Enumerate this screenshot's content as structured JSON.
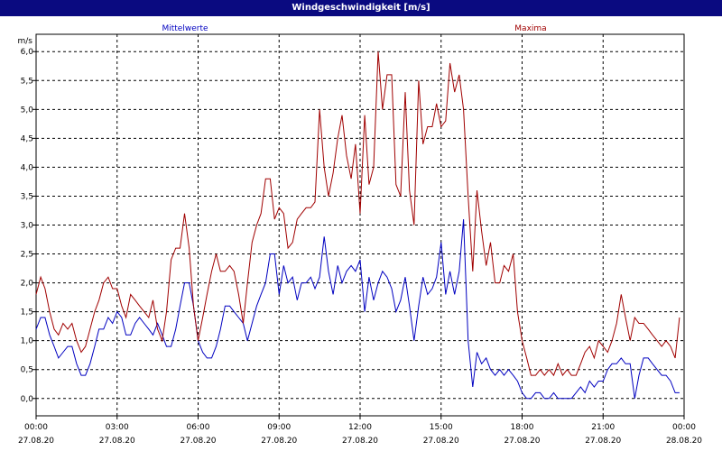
{
  "window": {
    "title": "Windgeschwindigkeit [m/s]"
  },
  "chart_data": {
    "type": "line",
    "title": "Windgeschwindigkeit [m/s]",
    "ylabel": "m/s",
    "ylim": [
      -0.3,
      6.3
    ],
    "yticks": [
      0.0,
      0.5,
      1.0,
      1.5,
      2.0,
      2.5,
      3.0,
      3.5,
      4.0,
      4.5,
      5.0,
      5.5,
      6.0
    ],
    "ytick_labels": [
      "0,0",
      "0,5",
      "1,0",
      "1,5",
      "2,0",
      "2,5",
      "3,0",
      "3,5",
      "4,0",
      "4,5",
      "5,0",
      "5,5",
      "6,0"
    ],
    "x_range_hours": [
      0,
      24
    ],
    "xticks": [
      {
        "h": 0,
        "time": "00:00",
        "date": "27.08.20"
      },
      {
        "h": 3,
        "time": "03:00",
        "date": "27.08.20"
      },
      {
        "h": 6,
        "time": "06:00",
        "date": "27.08.20"
      },
      {
        "h": 9,
        "time": "09:00",
        "date": "27.08.20"
      },
      {
        "h": 12,
        "time": "12:00",
        "date": "27.08.20"
      },
      {
        "h": 15,
        "time": "15:00",
        "date": "27.08.20"
      },
      {
        "h": 18,
        "time": "18:00",
        "date": "27.08.20"
      },
      {
        "h": 21,
        "time": "21:00",
        "date": "27.08.20"
      },
      {
        "h": 24,
        "time": "00:00",
        "date": "28.08.20"
      }
    ],
    "grid": true,
    "series": [
      {
        "name": "Mittelwerte",
        "color": "#0000c0",
        "legend_position": "top-left",
        "points": [
          [
            0.0,
            1.2
          ],
          [
            0.17,
            1.4
          ],
          [
            0.33,
            1.4
          ],
          [
            0.5,
            1.1
          ],
          [
            0.67,
            0.9
          ],
          [
            0.83,
            0.7
          ],
          [
            1.0,
            0.8
          ],
          [
            1.17,
            0.9
          ],
          [
            1.33,
            0.9
          ],
          [
            1.5,
            0.6
          ],
          [
            1.67,
            0.4
          ],
          [
            1.83,
            0.4
          ],
          [
            2.0,
            0.6
          ],
          [
            2.17,
            0.9
          ],
          [
            2.33,
            1.2
          ],
          [
            2.5,
            1.2
          ],
          [
            2.67,
            1.4
          ],
          [
            2.83,
            1.3
          ],
          [
            3.0,
            1.5
          ],
          [
            3.17,
            1.4
          ],
          [
            3.33,
            1.1
          ],
          [
            3.5,
            1.1
          ],
          [
            3.67,
            1.3
          ],
          [
            3.83,
            1.4
          ],
          [
            4.0,
            1.3
          ],
          [
            4.17,
            1.2
          ],
          [
            4.33,
            1.1
          ],
          [
            4.5,
            1.3
          ],
          [
            4.67,
            1.1
          ],
          [
            4.83,
            0.9
          ],
          [
            5.0,
            0.9
          ],
          [
            5.17,
            1.2
          ],
          [
            5.33,
            1.6
          ],
          [
            5.5,
            2.0
          ],
          [
            5.67,
            2.0
          ],
          [
            5.83,
            1.6
          ],
          [
            6.0,
            1.0
          ],
          [
            6.17,
            0.8
          ],
          [
            6.33,
            0.7
          ],
          [
            6.5,
            0.7
          ],
          [
            6.67,
            0.9
          ],
          [
            6.83,
            1.2
          ],
          [
            7.0,
            1.6
          ],
          [
            7.17,
            1.6
          ],
          [
            7.33,
            1.5
          ],
          [
            7.5,
            1.4
          ],
          [
            7.67,
            1.3
          ],
          [
            7.83,
            1.0
          ],
          [
            8.0,
            1.3
          ],
          [
            8.17,
            1.6
          ],
          [
            8.33,
            1.8
          ],
          [
            8.5,
            2.0
          ],
          [
            8.67,
            2.5
          ],
          [
            8.83,
            2.5
          ],
          [
            9.0,
            1.8
          ],
          [
            9.17,
            2.3
          ],
          [
            9.33,
            2.0
          ],
          [
            9.5,
            2.1
          ],
          [
            9.67,
            1.7
          ],
          [
            9.83,
            2.0
          ],
          [
            10.0,
            2.0
          ],
          [
            10.17,
            2.1
          ],
          [
            10.33,
            1.9
          ],
          [
            10.5,
            2.1
          ],
          [
            10.67,
            2.8
          ],
          [
            10.83,
            2.2
          ],
          [
            11.0,
            1.8
          ],
          [
            11.17,
            2.3
          ],
          [
            11.33,
            2.0
          ],
          [
            11.5,
            2.2
          ],
          [
            11.67,
            2.3
          ],
          [
            11.83,
            2.2
          ],
          [
            12.0,
            2.4
          ],
          [
            12.17,
            1.5
          ],
          [
            12.33,
            2.1
          ],
          [
            12.5,
            1.7
          ],
          [
            12.67,
            2.0
          ],
          [
            12.83,
            2.2
          ],
          [
            13.0,
            2.1
          ],
          [
            13.17,
            1.9
          ],
          [
            13.33,
            1.5
          ],
          [
            13.5,
            1.7
          ],
          [
            13.67,
            2.1
          ],
          [
            13.83,
            1.6
          ],
          [
            14.0,
            1.0
          ],
          [
            14.17,
            1.6
          ],
          [
            14.33,
            2.1
          ],
          [
            14.5,
            1.8
          ],
          [
            14.67,
            1.9
          ],
          [
            14.83,
            2.1
          ],
          [
            15.0,
            2.7
          ],
          [
            15.17,
            1.8
          ],
          [
            15.33,
            2.2
          ],
          [
            15.5,
            1.8
          ],
          [
            15.67,
            2.2
          ],
          [
            15.83,
            3.1
          ],
          [
            16.0,
            1.0
          ],
          [
            16.17,
            0.2
          ],
          [
            16.33,
            0.8
          ],
          [
            16.5,
            0.6
          ],
          [
            16.67,
            0.7
          ],
          [
            16.83,
            0.5
          ],
          [
            17.0,
            0.4
          ],
          [
            17.17,
            0.5
          ],
          [
            17.33,
            0.4
          ],
          [
            17.5,
            0.5
          ],
          [
            17.67,
            0.4
          ],
          [
            17.83,
            0.3
          ],
          [
            18.0,
            0.1
          ],
          [
            18.17,
            0.0
          ],
          [
            18.33,
            0.0
          ],
          [
            18.5,
            0.1
          ],
          [
            18.67,
            0.1
          ],
          [
            18.83,
            0.0
          ],
          [
            19.0,
            0.0
          ],
          [
            19.17,
            0.1
          ],
          [
            19.33,
            0.0
          ],
          [
            19.5,
            0.0
          ],
          [
            19.67,
            0.0
          ],
          [
            19.83,
            0.0
          ],
          [
            20.0,
            0.1
          ],
          [
            20.17,
            0.2
          ],
          [
            20.33,
            0.1
          ],
          [
            20.5,
            0.3
          ],
          [
            20.67,
            0.2
          ],
          [
            20.83,
            0.3
          ],
          [
            21.0,
            0.3
          ],
          [
            21.17,
            0.5
          ],
          [
            21.33,
            0.6
          ],
          [
            21.5,
            0.6
          ],
          [
            21.67,
            0.7
          ],
          [
            21.83,
            0.6
          ],
          [
            22.0,
            0.6
          ],
          [
            22.17,
            0.0
          ],
          [
            22.33,
            0.4
          ],
          [
            22.5,
            0.7
          ],
          [
            22.67,
            0.7
          ],
          [
            22.83,
            0.6
          ],
          [
            23.0,
            0.5
          ],
          [
            23.17,
            0.4
          ],
          [
            23.33,
            0.4
          ],
          [
            23.5,
            0.3
          ],
          [
            23.67,
            0.1
          ],
          [
            23.83,
            0.1
          ]
        ]
      },
      {
        "name": "Maxima",
        "color": "#a00000",
        "legend_position": "top-right",
        "points": [
          [
            0.0,
            1.8
          ],
          [
            0.17,
            2.1
          ],
          [
            0.33,
            1.9
          ],
          [
            0.5,
            1.5
          ],
          [
            0.67,
            1.2
          ],
          [
            0.83,
            1.1
          ],
          [
            1.0,
            1.3
          ],
          [
            1.17,
            1.2
          ],
          [
            1.33,
            1.3
          ],
          [
            1.5,
            1.0
          ],
          [
            1.67,
            0.8
          ],
          [
            1.83,
            0.9
          ],
          [
            2.0,
            1.2
          ],
          [
            2.17,
            1.5
          ],
          [
            2.33,
            1.7
          ],
          [
            2.5,
            2.0
          ],
          [
            2.67,
            2.1
          ],
          [
            2.83,
            1.9
          ],
          [
            3.0,
            1.9
          ],
          [
            3.17,
            1.6
          ],
          [
            3.33,
            1.4
          ],
          [
            3.5,
            1.8
          ],
          [
            3.67,
            1.7
          ],
          [
            3.83,
            1.6
          ],
          [
            4.0,
            1.5
          ],
          [
            4.17,
            1.4
          ],
          [
            4.33,
            1.7
          ],
          [
            4.5,
            1.2
          ],
          [
            4.67,
            1.0
          ],
          [
            4.83,
            1.5
          ],
          [
            5.0,
            2.4
          ],
          [
            5.17,
            2.6
          ],
          [
            5.33,
            2.6
          ],
          [
            5.5,
            3.2
          ],
          [
            5.67,
            2.6
          ],
          [
            5.83,
            1.6
          ],
          [
            6.0,
            1.0
          ],
          [
            6.17,
            1.4
          ],
          [
            6.33,
            1.8
          ],
          [
            6.5,
            2.2
          ],
          [
            6.67,
            2.5
          ],
          [
            6.83,
            2.2
          ],
          [
            7.0,
            2.2
          ],
          [
            7.17,
            2.3
          ],
          [
            7.33,
            2.2
          ],
          [
            7.5,
            1.8
          ],
          [
            7.67,
            1.3
          ],
          [
            7.83,
            2.0
          ],
          [
            8.0,
            2.7
          ],
          [
            8.17,
            3.0
          ],
          [
            8.33,
            3.2
          ],
          [
            8.5,
            3.8
          ],
          [
            8.67,
            3.8
          ],
          [
            8.83,
            3.1
          ],
          [
            9.0,
            3.3
          ],
          [
            9.17,
            3.2
          ],
          [
            9.33,
            2.6
          ],
          [
            9.5,
            2.7
          ],
          [
            9.67,
            3.1
          ],
          [
            9.83,
            3.2
          ],
          [
            10.0,
            3.3
          ],
          [
            10.17,
            3.3
          ],
          [
            10.33,
            3.4
          ],
          [
            10.5,
            5.0
          ],
          [
            10.67,
            4.0
          ],
          [
            10.83,
            3.5
          ],
          [
            11.0,
            3.9
          ],
          [
            11.17,
            4.5
          ],
          [
            11.33,
            4.9
          ],
          [
            11.5,
            4.2
          ],
          [
            11.67,
            3.8
          ],
          [
            11.83,
            4.4
          ],
          [
            12.0,
            3.2
          ],
          [
            12.17,
            4.9
          ],
          [
            12.33,
            3.7
          ],
          [
            12.5,
            4.0
          ],
          [
            12.67,
            6.0
          ],
          [
            12.83,
            5.0
          ],
          [
            13.0,
            5.6
          ],
          [
            13.17,
            5.6
          ],
          [
            13.33,
            3.7
          ],
          [
            13.5,
            3.5
          ],
          [
            13.67,
            5.3
          ],
          [
            13.83,
            3.6
          ],
          [
            14.0,
            3.0
          ],
          [
            14.17,
            5.5
          ],
          [
            14.33,
            4.4
          ],
          [
            14.5,
            4.7
          ],
          [
            14.67,
            4.7
          ],
          [
            14.83,
            5.1
          ],
          [
            15.0,
            4.7
          ],
          [
            15.17,
            4.8
          ],
          [
            15.33,
            5.8
          ],
          [
            15.5,
            5.3
          ],
          [
            15.67,
            5.6
          ],
          [
            15.83,
            5.0
          ],
          [
            16.0,
            3.5
          ],
          [
            16.17,
            2.2
          ],
          [
            16.33,
            3.6
          ],
          [
            16.5,
            2.9
          ],
          [
            16.67,
            2.3
          ],
          [
            16.83,
            2.7
          ],
          [
            17.0,
            2.0
          ],
          [
            17.17,
            2.0
          ],
          [
            17.33,
            2.3
          ],
          [
            17.5,
            2.2
          ],
          [
            17.67,
            2.5
          ],
          [
            17.83,
            1.5
          ],
          [
            18.0,
            1.0
          ],
          [
            18.17,
            0.7
          ],
          [
            18.33,
            0.4
          ],
          [
            18.5,
            0.4
          ],
          [
            18.67,
            0.5
          ],
          [
            18.83,
            0.4
          ],
          [
            19.0,
            0.5
          ],
          [
            19.17,
            0.4
          ],
          [
            19.33,
            0.6
          ],
          [
            19.5,
            0.4
          ],
          [
            19.67,
            0.5
          ],
          [
            19.83,
            0.4
          ],
          [
            20.0,
            0.4
          ],
          [
            20.17,
            0.6
          ],
          [
            20.33,
            0.8
          ],
          [
            20.5,
            0.9
          ],
          [
            20.67,
            0.7
          ],
          [
            20.83,
            1.0
          ],
          [
            21.0,
            0.9
          ],
          [
            21.17,
            0.8
          ],
          [
            21.33,
            1.0
          ],
          [
            21.5,
            1.3
          ],
          [
            21.67,
            1.8
          ],
          [
            21.83,
            1.4
          ],
          [
            22.0,
            1.0
          ],
          [
            22.17,
            1.4
          ],
          [
            22.33,
            1.3
          ],
          [
            22.5,
            1.3
          ],
          [
            22.67,
            1.2
          ],
          [
            22.83,
            1.1
          ],
          [
            23.0,
            1.0
          ],
          [
            23.17,
            0.9
          ],
          [
            23.33,
            1.0
          ],
          [
            23.5,
            0.9
          ],
          [
            23.67,
            0.7
          ],
          [
            23.83,
            1.4
          ]
        ]
      }
    ]
  }
}
